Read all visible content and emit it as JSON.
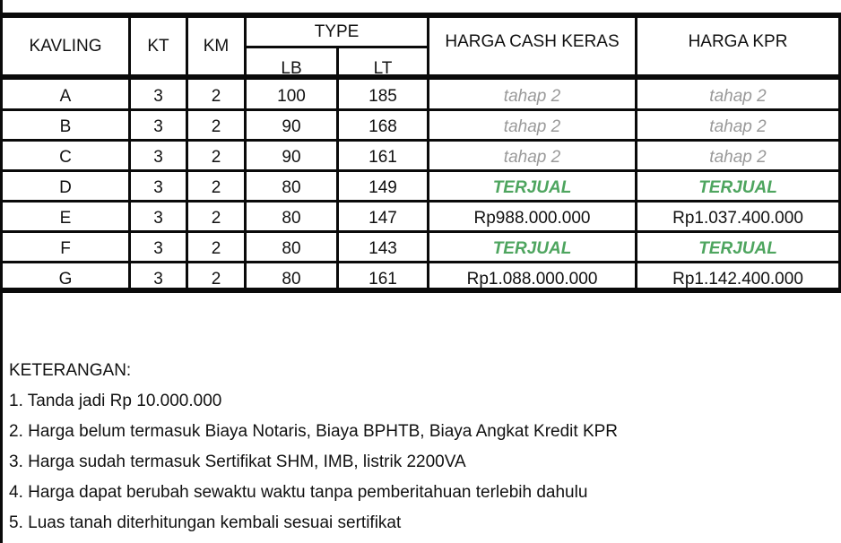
{
  "table": {
    "headers": {
      "kavling": "KAVLING",
      "kt": "KT",
      "km": "KM",
      "type": "TYPE",
      "lb": "LB",
      "lt": "LT",
      "harga_cash": "HARGA CASH KERAS",
      "harga_kpr": "HARGA KPR"
    },
    "rows": [
      {
        "kavling": "A",
        "kt": "3",
        "km": "2",
        "lb": "100",
        "lt": "185",
        "cash": "tahap 2",
        "kpr": "tahap 2",
        "status": "tahap"
      },
      {
        "kavling": "B",
        "kt": "3",
        "km": "2",
        "lb": "90",
        "lt": "168",
        "cash": "tahap 2",
        "kpr": "tahap 2",
        "status": "tahap"
      },
      {
        "kavling": "C",
        "kt": "3",
        "km": "2",
        "lb": "90",
        "lt": "161",
        "cash": "tahap 2",
        "kpr": "tahap 2",
        "status": "tahap"
      },
      {
        "kavling": "D",
        "kt": "3",
        "km": "2",
        "lb": "80",
        "lt": "149",
        "cash": "TERJUAL",
        "kpr": "TERJUAL",
        "status": "sold"
      },
      {
        "kavling": "E",
        "kt": "3",
        "km": "2",
        "lb": "80",
        "lt": "147",
        "cash": "Rp988.000.000",
        "kpr": "Rp1.037.400.000",
        "status": "price"
      },
      {
        "kavling": "F",
        "kt": "3",
        "km": "2",
        "lb": "80",
        "lt": "143",
        "cash": "TERJUAL",
        "kpr": "TERJUAL",
        "status": "sold"
      },
      {
        "kavling": "G",
        "kt": "3",
        "km": "2",
        "lb": "80",
        "lt": "161",
        "cash": "Rp1.088.000.000",
        "kpr": "Rp1.142.400.000",
        "status": "price"
      }
    ]
  },
  "notes": {
    "title": "KETERANGAN:",
    "items": [
      "1. Tanda jadi Rp 10.000.000",
      "2. Harga belum termasuk Biaya Notaris, Biaya BPHTB, Biaya Angkat Kredit KPR",
      "3. Harga sudah termasuk Sertifikat SHM, IMB, listrik 2200VA",
      "4. Harga dapat berubah sewaktu waktu tanpa pemberitahuan terlebih dahulu",
      "5. Luas tanah diterhitungan kembali sesuai sertifikat"
    ]
  },
  "colors": {
    "sold": "#4ea55f",
    "tahap": "#9a9a9a"
  }
}
